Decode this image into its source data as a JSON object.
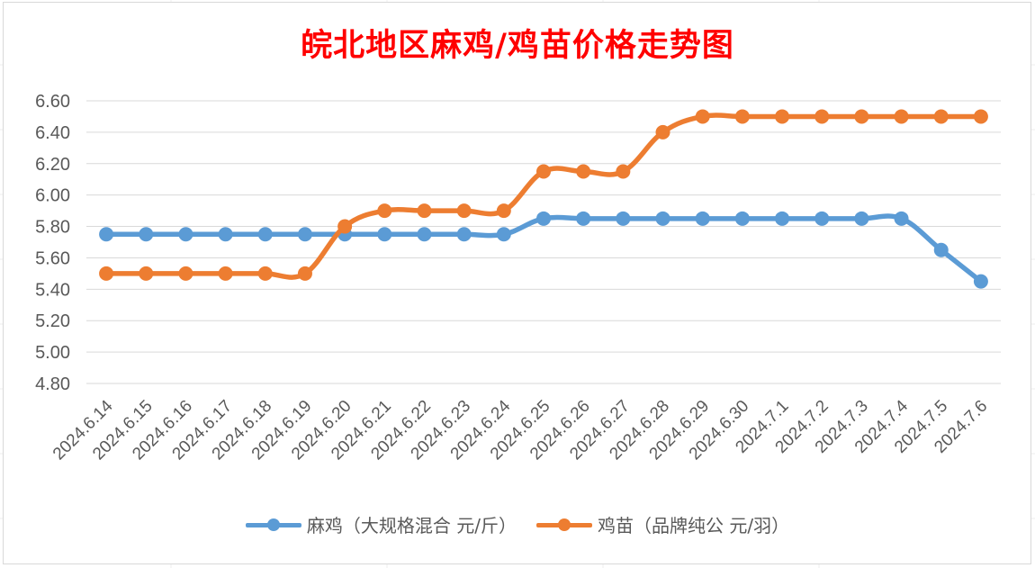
{
  "chart_data": {
    "type": "line",
    "title": "皖北地区麻鸡/鸡苗价格走势图",
    "categories": [
      "2024.6.14",
      "2024.6.15",
      "2024.6.16",
      "2024.6.17",
      "2024.6.18",
      "2024.6.19",
      "2024.6.20",
      "2024.6.21",
      "2024.6.22",
      "2024.6.23",
      "2024.6.24",
      "2024.6.25",
      "2024.6.26",
      "2024.6.27",
      "2024.6.28",
      "2024.6.29",
      "2024.6.30",
      "2024.7.1",
      "2024.7.2",
      "2024.7.3",
      "2024.7.4",
      "2024.7.5",
      "2024.7.6"
    ],
    "series": [
      {
        "name": "麻鸡（大规格混合 元/斤）",
        "color": "#5b9bd5",
        "values": [
          5.75,
          5.75,
          5.75,
          5.75,
          5.75,
          5.75,
          5.75,
          5.75,
          5.75,
          5.75,
          5.75,
          5.85,
          5.85,
          5.85,
          5.85,
          5.85,
          5.85,
          5.85,
          5.85,
          5.85,
          5.85,
          5.65,
          5.45
        ]
      },
      {
        "name": "鸡苗（品牌纯公 元/羽）",
        "color": "#ed7d31",
        "values": [
          5.5,
          5.5,
          5.5,
          5.5,
          5.5,
          5.5,
          5.8,
          5.9,
          5.9,
          5.9,
          5.9,
          6.15,
          6.15,
          6.15,
          6.4,
          6.5,
          6.5,
          6.5,
          6.5,
          6.5,
          6.5,
          6.5,
          6.5
        ]
      }
    ],
    "yticks": [
      "6.60",
      "6.40",
      "6.20",
      "6.00",
      "5.80",
      "5.60",
      "5.40",
      "5.20",
      "5.00",
      "4.80"
    ],
    "ylim": [
      4.8,
      6.6
    ],
    "grid": true,
    "legend_position": "bottom",
    "title_color": "#ff0000"
  }
}
